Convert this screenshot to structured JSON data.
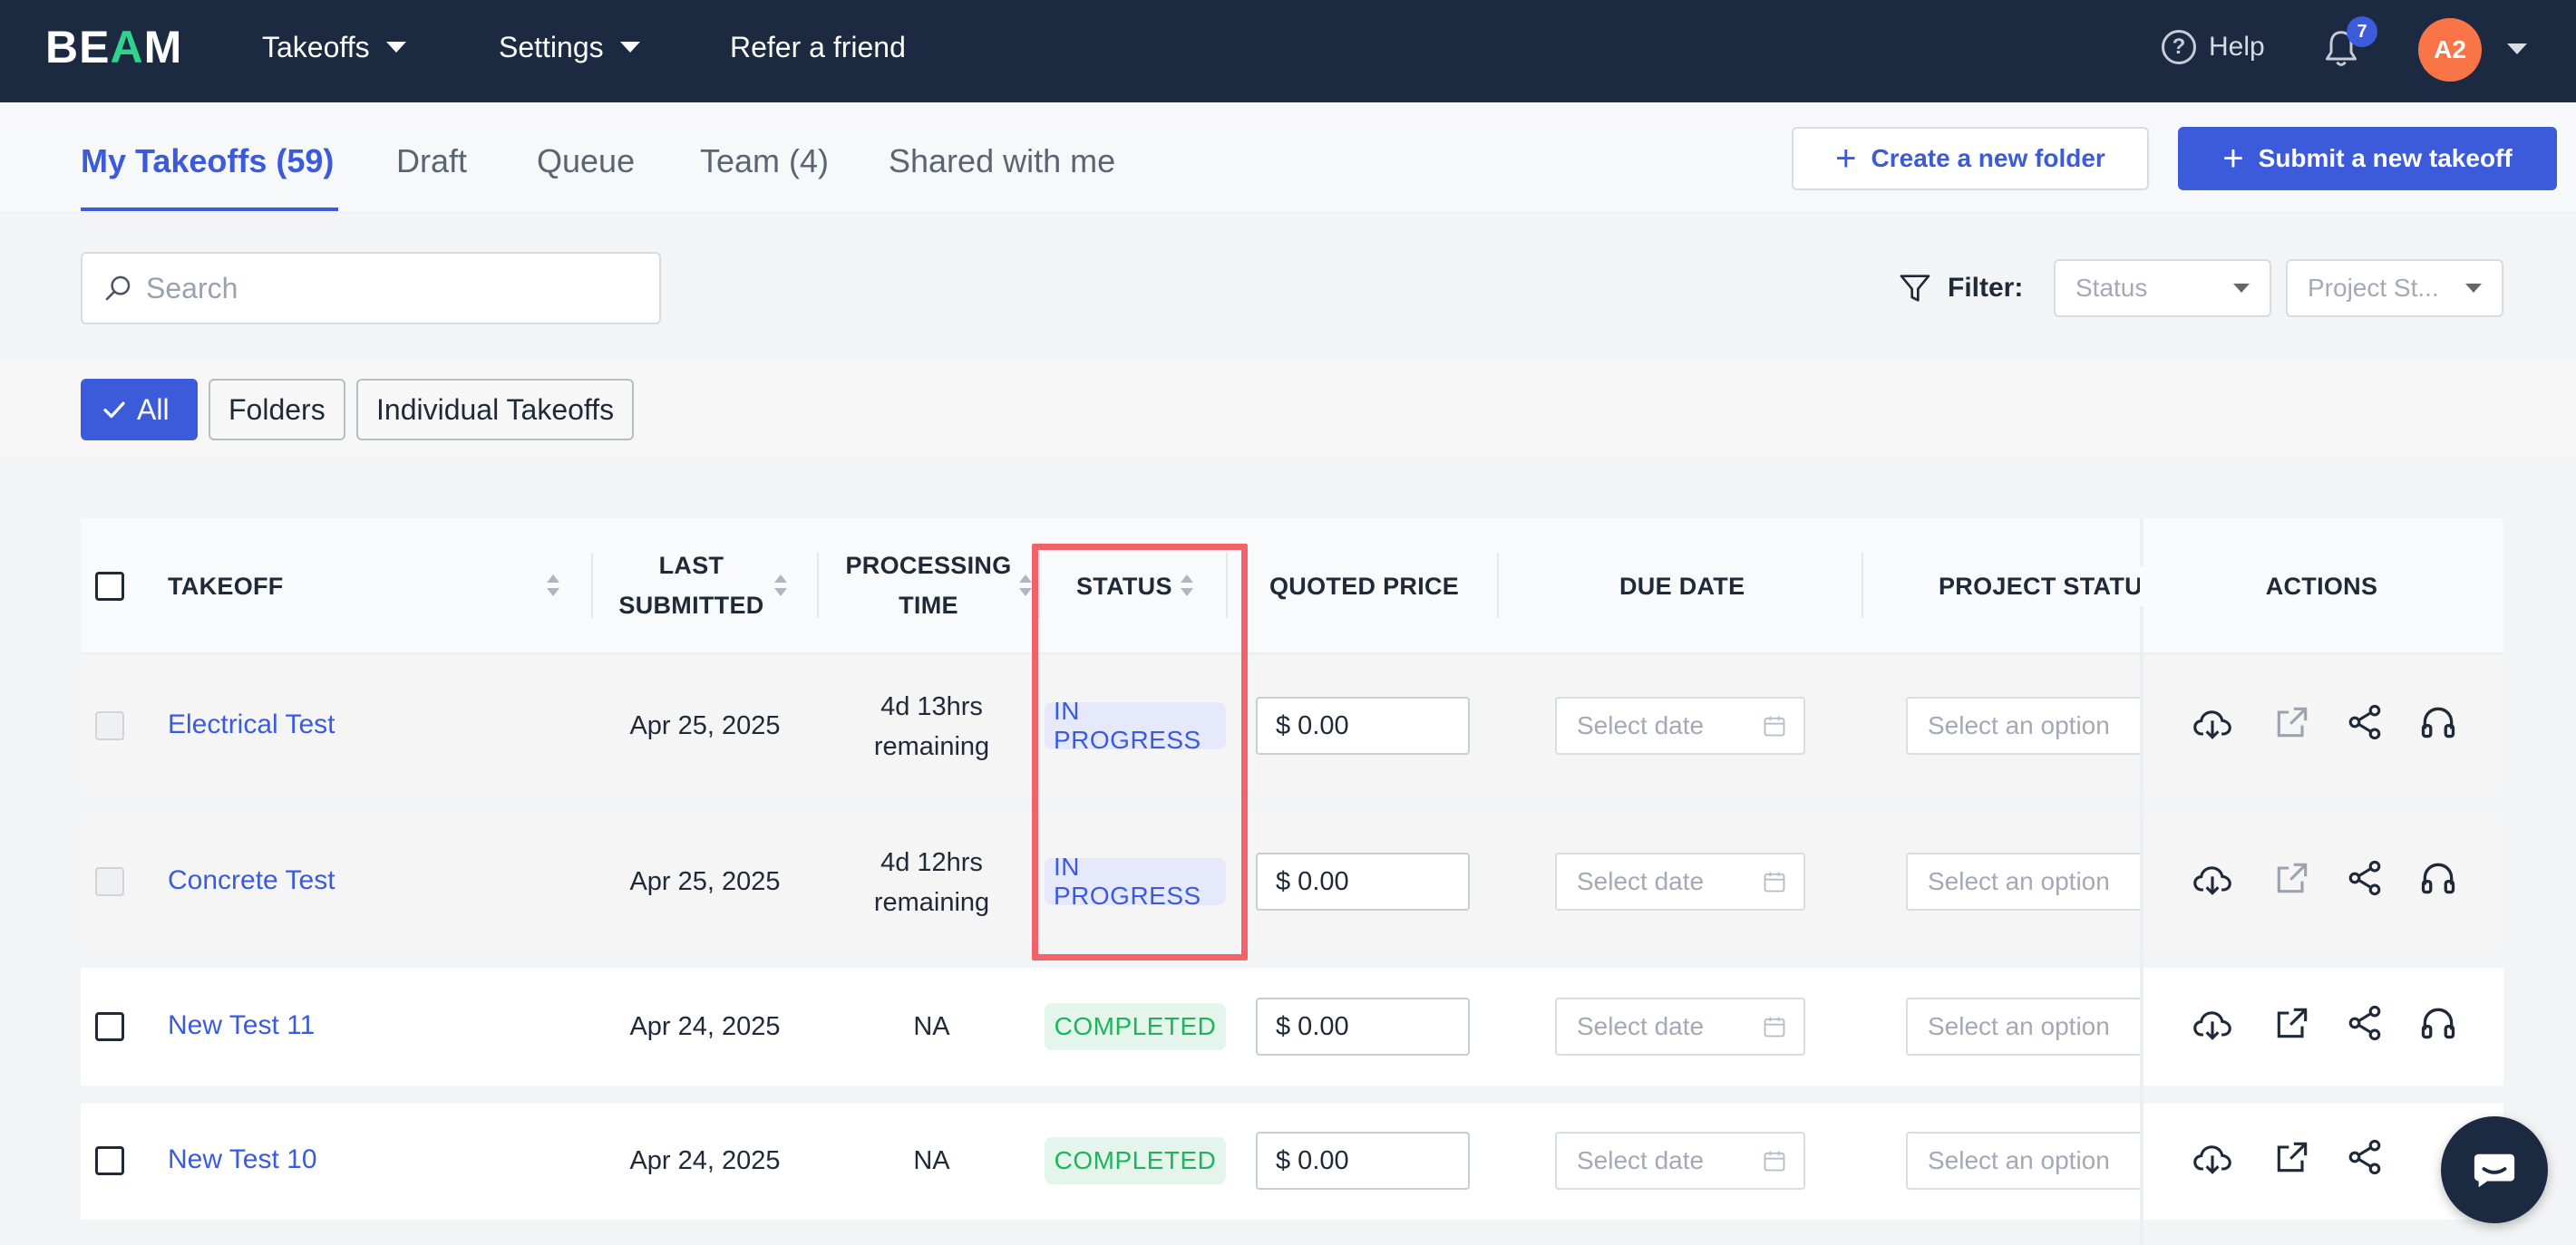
{
  "nav": {
    "logo": "BEAM",
    "logo_parts": [
      "BE",
      "A",
      "M"
    ],
    "items": [
      {
        "label": "Takeoffs",
        "has_dropdown": true
      },
      {
        "label": "Settings",
        "has_dropdown": true
      },
      {
        "label": "Refer a friend",
        "has_dropdown": false
      }
    ],
    "help_label": "Help",
    "notification_count": "7",
    "avatar_initials": "A2"
  },
  "tabs": [
    {
      "label": "My Takeoffs (59)",
      "active": true
    },
    {
      "label": "Draft",
      "active": false
    },
    {
      "label": "Queue",
      "active": false
    },
    {
      "label": "Team (4)",
      "active": false
    },
    {
      "label": "Shared with me",
      "active": false
    }
  ],
  "buttons": {
    "create_folder": "Create a new folder",
    "submit_takeoff": "Submit a new takeoff"
  },
  "search": {
    "placeholder": "Search"
  },
  "filter": {
    "label": "Filter:",
    "status_placeholder": "Status",
    "project_status_placeholder": "Project St..."
  },
  "view_chips": [
    "All",
    "Folders",
    "Individual Takeoffs"
  ],
  "table": {
    "headers": {
      "takeoff": "TAKEOFF",
      "last_submitted": [
        "LAST",
        "SUBMITTED"
      ],
      "processing_time": [
        "PROCESSING",
        "TIME"
      ],
      "status": "STATUS",
      "quoted_price": "QUOTED PRICE",
      "due_date": "DUE DATE",
      "project_status": "PROJECT STATUS",
      "actions": "ACTIONS"
    },
    "date_placeholder": "Select date",
    "option_placeholder": "Select an option",
    "rows": [
      {
        "name": "Electrical Test",
        "last_submitted": "Apr 25, 2025",
        "processing": [
          "4d 13hrs",
          "remaining"
        ],
        "status": "IN PROGRESS",
        "price": "$ 0.00"
      },
      {
        "name": "Concrete Test",
        "last_submitted": "Apr 25, 2025",
        "processing": [
          "4d 12hrs",
          "remaining"
        ],
        "status": "IN PROGRESS",
        "price": "$ 0.00"
      },
      {
        "name": "New Test 11",
        "last_submitted": "Apr 24, 2025",
        "processing": [
          "NA"
        ],
        "status": "COMPLETED",
        "price": "$ 0.00"
      },
      {
        "name": "New Test 10",
        "last_submitted": "Apr 24, 2025",
        "processing": [
          "NA"
        ],
        "status": "COMPLETED",
        "price": "$ 0.00"
      }
    ]
  },
  "colors": {
    "nav_bg": "#1b2a41",
    "accent": "#3b5bdb",
    "logo_accent": "#2fd38e",
    "in_progress": "#3b5bdb",
    "completed": "#1fb35b",
    "highlight": "#f2626b",
    "avatar": "#f97447"
  }
}
